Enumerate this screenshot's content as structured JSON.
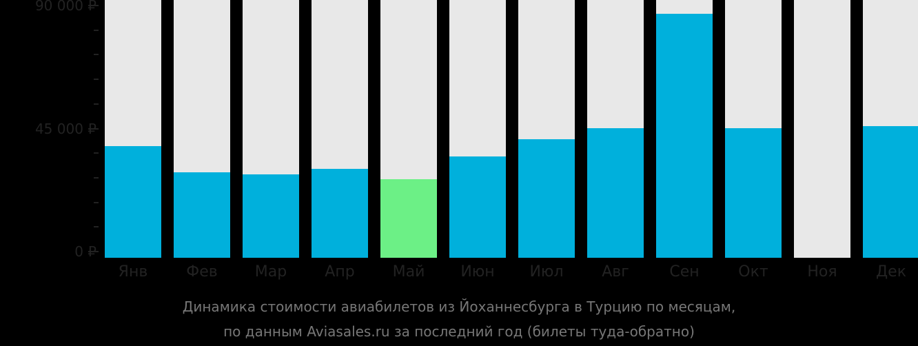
{
  "chart_data": {
    "type": "bar",
    "title": "Динамика стоимости авиабилетов из Йоханнесбурга в Турцию по месяцам, по данным Aviasales.ru за последний год (билеты туда-обратно)",
    "xlabel": "",
    "ylabel": "",
    "ylim": [
      0,
      90000
    ],
    "y_ticks": [
      "0 ₽",
      "45 000 ₽",
      "90 000 ₽"
    ],
    "categories": [
      "Янв",
      "Фев",
      "Мар",
      "Апр",
      "Май",
      "Июн",
      "Июл",
      "Авг",
      "Сен",
      "Окт",
      "Ноя",
      "Дек"
    ],
    "values": [
      38600,
      29000,
      28200,
      30200,
      26500,
      34800,
      41100,
      45100,
      87000,
      45100,
      null,
      45900
    ],
    "highlight": {
      "index": 4,
      "color": "#6cf086",
      "meaning": "cheapest month"
    },
    "colors": {
      "bar": "#00b0dc",
      "cheapest": "#6cf086",
      "background_track": "#e8e8e8"
    },
    "grid": false,
    "legend": null
  },
  "axis": {
    "y_labels": [
      {
        "label": "90 000 ₽",
        "value": 90000
      },
      {
        "label": "45 000 ₽",
        "value": 45000
      },
      {
        "label": "0 ₽",
        "value": 0
      }
    ]
  },
  "caption": {
    "line1": "Динамика стоимости авиабилетов из Йоханнесбурга в Турцию по месяцам,",
    "line2": "по данным Aviasales.ru за последний год (билеты туда-обратно)"
  }
}
